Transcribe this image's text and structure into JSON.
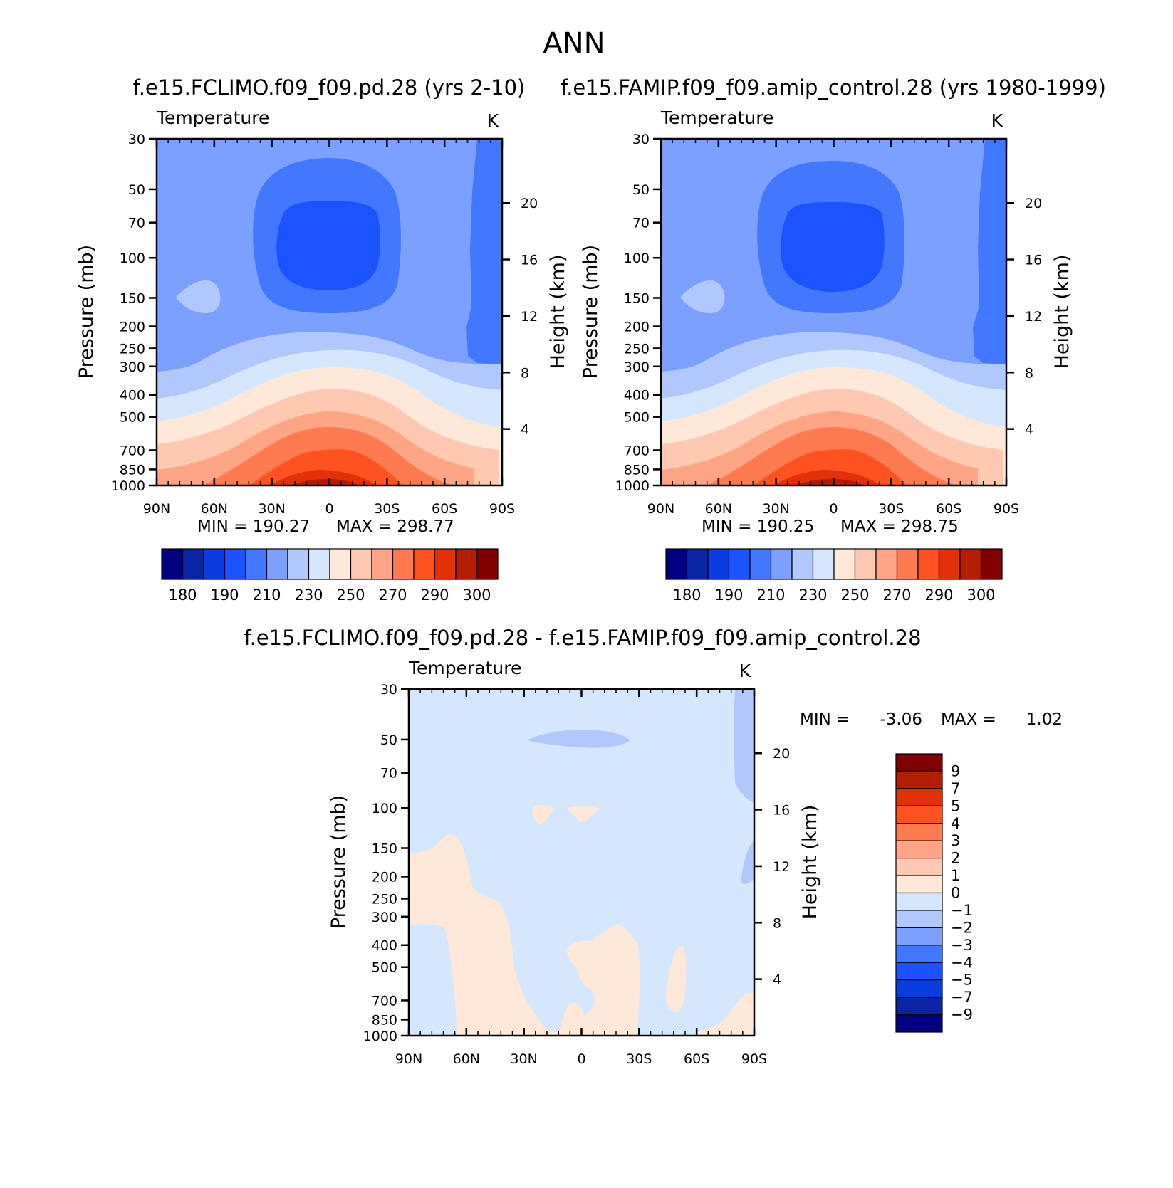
{
  "title": "ANN",
  "colors": {
    "temperature_scale": [
      "#000080",
      "#0a24a6",
      "#0a3de0",
      "#1a53ff",
      "#4178ff",
      "#7ba0ff",
      "#b1c8ff",
      "#d5e7ff",
      "#ffe8d8",
      "#ffc8b0",
      "#ffa484",
      "#ff7a4e",
      "#ff5220",
      "#e23008",
      "#b41e00",
      "#800000"
    ],
    "diff_scale": [
      "#000080",
      "#0a24a6",
      "#0a3de0",
      "#1a53ff",
      "#4178ff",
      "#7ba0ff",
      "#b1c8ff",
      "#d5e7ff",
      "#ffe8d8",
      "#ffc8b0",
      "#ffa484",
      "#ff7a4e",
      "#ff5220",
      "#e23008",
      "#b41e00",
      "#800000"
    ]
  },
  "chart_data": [
    {
      "type": "heatmap",
      "panel": "top-left",
      "title": "f.e15.FCLIMO.f09_f09.pd.28 (yrs 2-10)",
      "subtitle": "Temperature",
      "units": "K",
      "ylabel": "Pressure (mb)",
      "y2label": "Height (km)",
      "x_ticks": [
        "90N",
        "60N",
        "30N",
        "0",
        "30S",
        "60S",
        "90S"
      ],
      "y_ticks": [
        30,
        50,
        70,
        100,
        150,
        200,
        250,
        300,
        400,
        500,
        700,
        850,
        1000
      ],
      "y2_ticks": [
        20,
        16,
        12,
        8,
        4
      ],
      "ylim": [
        1000,
        30
      ],
      "yscale": "log",
      "min_label": "MIN = 190.27",
      "max_label": "MAX = 298.77",
      "min": 190.27,
      "max": 298.77,
      "colorbar_labels": [
        "180",
        "190",
        "210",
        "230",
        "250",
        "270",
        "290",
        "300"
      ]
    },
    {
      "type": "heatmap",
      "panel": "top-right",
      "title": "f.e15.FAMIP.f09_f09.amip_control.28 (yrs 1980-1999)",
      "subtitle": "Temperature",
      "units": "K",
      "ylabel": "Pressure (mb)",
      "y2label": "Height (km)",
      "x_ticks": [
        "90N",
        "60N",
        "30N",
        "0",
        "30S",
        "60S",
        "90S"
      ],
      "y_ticks": [
        30,
        50,
        70,
        100,
        150,
        200,
        250,
        300,
        400,
        500,
        700,
        850,
        1000
      ],
      "y2_ticks": [
        20,
        16,
        12,
        8,
        4
      ],
      "ylim": [
        1000,
        30
      ],
      "yscale": "log",
      "min_label": "MIN = 190.25",
      "max_label": "MAX = 298.75",
      "min": 190.25,
      "max": 298.75,
      "colorbar_labels": [
        "180",
        "190",
        "210",
        "230",
        "250",
        "270",
        "290",
        "300"
      ]
    },
    {
      "type": "heatmap",
      "panel": "bottom",
      "title": "f.e15.FCLIMO.f09_f09.pd.28 - f.e15.FAMIP.f09_f09.amip_control.28",
      "subtitle": "Temperature",
      "units": "K",
      "ylabel": "Pressure (mb)",
      "y2label": "Height (km)",
      "x_ticks": [
        "90N",
        "60N",
        "30N",
        "0",
        "30S",
        "60S",
        "90S"
      ],
      "y_ticks": [
        30,
        50,
        70,
        100,
        150,
        200,
        250,
        300,
        400,
        500,
        700,
        850,
        1000
      ],
      "y2_ticks": [
        20,
        16,
        12,
        8,
        4
      ],
      "ylim": [
        1000,
        30
      ],
      "yscale": "log",
      "min_label": "MIN =",
      "min_value": "-3.06",
      "max_label": "MAX =",
      "max_value": "1.02",
      "min": -3.06,
      "max": 1.02,
      "colorbar_labels": [
        "9",
        "7",
        "5",
        "4",
        "3",
        "2",
        "1",
        "0",
        "-1",
        "-2",
        "-3",
        "-4",
        "-5",
        "-7",
        "-9"
      ]
    }
  ]
}
